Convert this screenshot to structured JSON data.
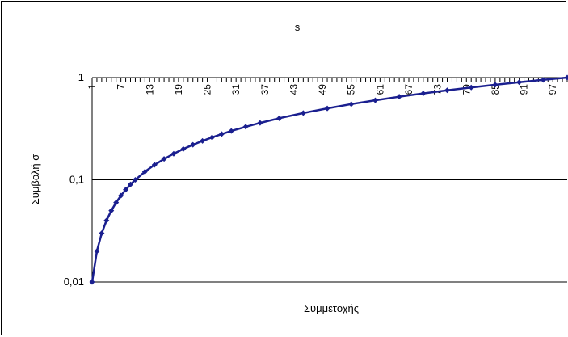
{
  "chart_data": {
    "type": "line",
    "title": "s",
    "xlabel": "Συμμετοχής",
    "ylabel": "Συμβολή σ",
    "y_scale": "log",
    "ylim": [
      0.01,
      1
    ],
    "y_ticks": [
      {
        "value": 0.01,
        "label": "0,01"
      },
      {
        "value": 0.1,
        "label": "0,1"
      },
      {
        "value": 1,
        "label": "1"
      }
    ],
    "x_range": [
      1,
      100
    ],
    "x_tick_labels": [
      "1",
      "7",
      "13",
      "19",
      "25",
      "31",
      "37",
      "43",
      "49",
      "55",
      "61",
      "67",
      "73",
      "79",
      "85",
      "91",
      "97"
    ],
    "grid": "major horizontal lines",
    "legend": "none",
    "series_color": "#1a1f8f",
    "marker": "diamond",
    "series": [
      {
        "x": [
          1,
          2,
          3,
          4,
          5,
          6,
          7,
          8,
          9,
          10,
          12,
          14,
          16,
          18,
          20,
          22,
          24,
          26,
          28,
          30,
          33,
          36,
          40,
          45,
          50,
          55,
          60,
          65,
          70,
          75,
          80,
          85,
          90,
          95,
          100
        ],
        "values": [
          0.01,
          0.02,
          0.03,
          0.04,
          0.05,
          0.06,
          0.07,
          0.08,
          0.09,
          0.1,
          0.12,
          0.14,
          0.16,
          0.18,
          0.2,
          0.22,
          0.24,
          0.26,
          0.28,
          0.3,
          0.33,
          0.36,
          0.4,
          0.45,
          0.5,
          0.55,
          0.6,
          0.65,
          0.7,
          0.75,
          0.8,
          0.85,
          0.9,
          0.95,
          1.0
        ]
      }
    ]
  }
}
